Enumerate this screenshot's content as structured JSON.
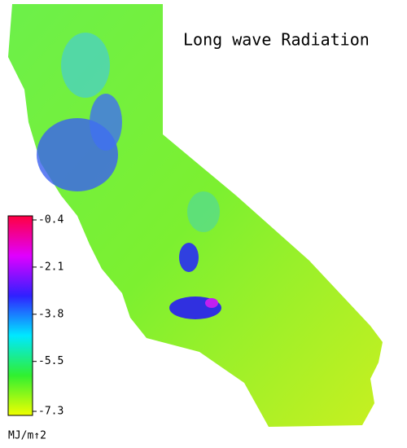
{
  "title": "Long wave Radiation",
  "colorbar": {
    "lim": [
      -7.3,
      -0.4
    ],
    "ticks": [
      -0.4,
      -2.1,
      -3.8,
      -5.5,
      -7.3
    ],
    "unit": "MJ/m↑2",
    "colors": [
      "#ff0040",
      "#e000ff",
      "#3020ff",
      "#00e8ff",
      "#30f030",
      "#f0ff00"
    ]
  }
}
